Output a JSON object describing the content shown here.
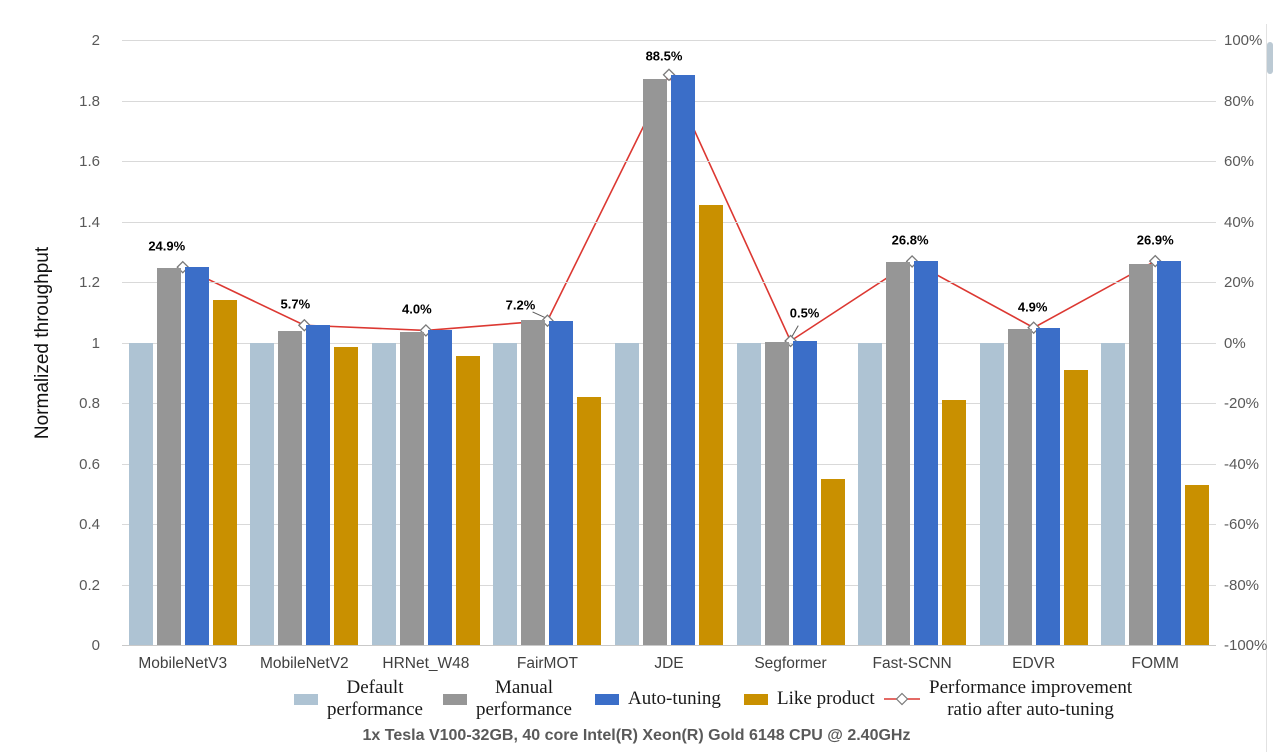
{
  "y_axis_title": "Normalized throughput",
  "footer": "1x Tesla V100-32GB, 40 core Intel(R) Xeon(R) Gold 6148 CPU @ 2.40GHz",
  "colors": {
    "default_bar": "#AEC3D3",
    "manual_bar": "#969696",
    "auto_bar": "#3B6EC8",
    "like_bar": "#C99000",
    "line": "#DC3832",
    "marker_fill": "#ffffff",
    "marker_stroke": "#7a7a7a",
    "gridline": "#d9d9d9"
  },
  "chart_data": {
    "type": "bar",
    "subtype": "grouped-bars-with-line-overlay",
    "title": "",
    "xlabel": "",
    "ylabel": "Normalized throughput",
    "categories": [
      "MobileNetV3",
      "MobileNetV2",
      "HRNet_W48",
      "FairMOT",
      "JDE",
      "Segformer",
      "Fast-SCNN",
      "EDVR",
      "FOMM"
    ],
    "series": [
      {
        "name": "Default performance",
        "type": "bar",
        "axis": "left",
        "color": "#AEC3D3",
        "values": [
          1.0,
          1.0,
          1.0,
          1.0,
          1.0,
          1.0,
          1.0,
          1.0,
          1.0
        ]
      },
      {
        "name": "Manual performance",
        "type": "bar",
        "axis": "left",
        "color": "#969696",
        "values": [
          1.245,
          1.038,
          1.036,
          1.073,
          1.87,
          1.002,
          1.265,
          1.046,
          1.26
        ]
      },
      {
        "name": "Auto-tuning",
        "type": "bar",
        "axis": "left",
        "color": "#3B6EC8",
        "values": [
          1.249,
          1.057,
          1.04,
          1.072,
          1.885,
          1.005,
          1.268,
          1.049,
          1.269
        ]
      },
      {
        "name": "Like product",
        "type": "bar",
        "axis": "left",
        "color": "#C99000",
        "values": [
          1.14,
          0.985,
          0.955,
          0.82,
          1.455,
          0.55,
          0.81,
          0.91,
          0.53
        ]
      },
      {
        "name": "Performance improvement ratio after auto-tuning",
        "type": "line",
        "axis": "right",
        "color": "#DC3832",
        "values": [
          24.9,
          5.7,
          4.0,
          7.2,
          88.5,
          0.5,
          26.8,
          4.9,
          26.9
        ],
        "point_labels": [
          "24.9%",
          "5.7%",
          "4.0%",
          "7.2%",
          "88.5%",
          "0.5%",
          "26.8%",
          "4.9%",
          "26.9%"
        ],
        "label_dx": [
          -16,
          -9,
          -9,
          -27,
          -5,
          14,
          -2,
          -1,
          0
        ],
        "label_dy": [
          -21,
          -21,
          -21,
          -16,
          -19,
          -28,
          -21,
          -21,
          -21
        ],
        "leader": [
          false,
          false,
          false,
          true,
          false,
          true,
          false,
          false,
          false
        ]
      }
    ],
    "axis_left": {
      "ticks": [
        "2",
        "1.8",
        "1.6",
        "1.4",
        "1.2",
        "1",
        "0.8",
        "0.6",
        "0.4",
        "0.2",
        "0"
      ],
      "range": [
        0,
        2
      ]
    },
    "axis_right": {
      "ticks": [
        "100%",
        "80%",
        "60%",
        "40%",
        "20%",
        "0%",
        "-20%",
        "-40%",
        "-60%",
        "-80%",
        "-100%"
      ],
      "range": [
        -100,
        100
      ]
    },
    "grid": true,
    "legend_position": "bottom"
  },
  "legend": {
    "items": [
      {
        "swatch": "square",
        "color": "#AEC3D3",
        "lines": [
          "Default",
          "performance"
        ]
      },
      {
        "swatch": "square",
        "color": "#969696",
        "lines": [
          "Manual",
          "performance"
        ]
      },
      {
        "swatch": "square",
        "color": "#3B6EC8",
        "lines": [
          "Auto-tuning"
        ]
      },
      {
        "swatch": "square",
        "color": "#C99000",
        "lines": [
          "Like product"
        ]
      },
      {
        "swatch": "line-diamond",
        "color": "#DC3832",
        "lines": [
          "Performance improvement",
          "ratio after auto-tuning"
        ]
      }
    ]
  }
}
